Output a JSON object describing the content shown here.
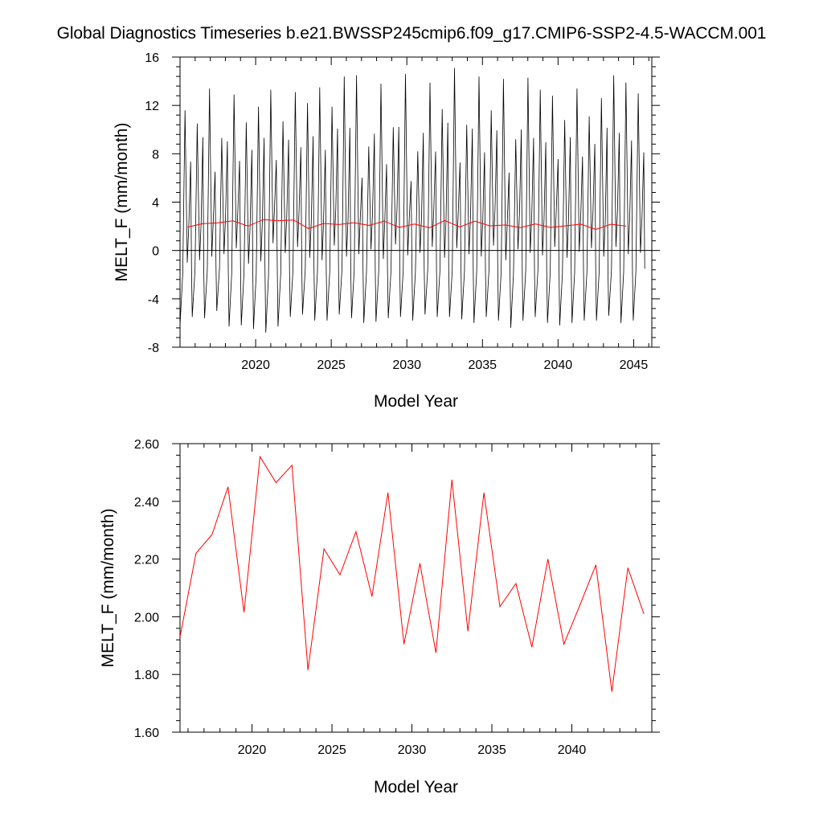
{
  "title": "Global Diagnostics Timeseries b.e21.BWSSP245cmip6.f09_g17.CMIP6-SSP2-4.5-WACCM.001",
  "colors": {
    "monthly": "#000000",
    "annual": "#ff0000",
    "axis": "#000000"
  },
  "chart_data": [
    {
      "type": "line",
      "xlabel": "Model Year",
      "ylabel": "MELT_F (mm/month)",
      "xlim": [
        2015,
        2046.2
      ],
      "ylim": [
        -8,
        16
      ],
      "xticks": [
        2020,
        2025,
        2030,
        2035,
        2040,
        2045
      ],
      "yticks": [
        -8,
        -4,
        0,
        4,
        8,
        12,
        16
      ],
      "ytick_labels": [
        "-8",
        "-4",
        "0",
        "4",
        "8",
        "12",
        "16"
      ],
      "reference_line_y": 0,
      "grid": false,
      "series": [
        {
          "role": "monthly",
          "monthly_peaks": [
            11.6,
            10.5,
            13.4,
            9.3,
            12.9,
            10.6,
            11.9,
            13.3,
            10.7,
            13.1,
            12.2,
            13.5,
            11.9,
            14.4,
            14.5,
            8.6,
            13.8,
            10.2,
            14.6,
            8.2,
            13.9,
            11.7,
            15.1,
            10.4,
            14.4,
            11.6,
            14.2,
            9.2,
            14.3,
            13.3,
            12.8,
            10.8,
            13.4,
            11.1,
            12.6,
            14.5,
            13.9,
            13.0
          ],
          "monthly_troughs": [
            -6.2,
            -5.5,
            -5.6,
            -5.0,
            -6.3,
            -6.2,
            -6.5,
            -6.8,
            -6.3,
            -5.5,
            -5.3,
            -5.8,
            -5.8,
            -5.3,
            -5.6,
            -6.0,
            -5.9,
            -5.6,
            -5.5,
            -5.8,
            -5.3,
            -5.5,
            -5.5,
            -5.7,
            -6.0,
            -5.5,
            -5.8,
            -6.4,
            -5.8,
            -5.5,
            -6.0,
            -6.2,
            -6.0,
            -5.8,
            -5.8,
            -5.4,
            -6.0,
            -5.8
          ],
          "monthly_secondary": [
            -1.0,
            -0.8,
            -0.5,
            -0.3,
            0.2,
            -1.1,
            -0.9,
            0.6,
            -0.2,
            0.3,
            -0.6,
            -0.8,
            0.4,
            -0.5,
            -0.3,
            0.1,
            -0.7,
            0.5,
            -0.4,
            -0.2,
            0.3,
            -0.6,
            0.2,
            -0.3,
            -0.5,
            0.4,
            -0.8,
            0.1,
            -0.2,
            -0.4,
            0.3,
            -0.6,
            -0.1,
            0.2,
            -0.5,
            0.3,
            -0.3,
            -0.2
          ]
        },
        {
          "role": "annual",
          "x": [
            2015.5,
            2016.5,
            2017.5,
            2018.5,
            2019.5,
            2020.5,
            2021.5,
            2022.5,
            2023.5,
            2024.5,
            2025.5,
            2026.5,
            2027.5,
            2028.5,
            2029.5,
            2030.5,
            2031.5,
            2032.5,
            2033.5,
            2034.5,
            2035.5,
            2036.5,
            2037.5,
            2038.5,
            2039.5,
            2040.5,
            2041.5,
            2042.5,
            2043.5,
            2044.5
          ],
          "values": [
            1.93,
            2.22,
            2.285,
            2.45,
            2.015,
            2.555,
            2.465,
            2.525,
            1.815,
            2.235,
            2.145,
            2.295,
            2.07,
            2.43,
            1.905,
            2.185,
            1.875,
            2.475,
            1.95,
            2.43,
            2.035,
            2.115,
            1.895,
            2.2,
            1.905,
            2.04,
            2.18,
            1.74,
            2.17,
            2.01
          ]
        }
      ]
    },
    {
      "type": "line",
      "xlabel": "Model Year",
      "ylabel": "MELT_F (mm/month)",
      "xlim": [
        2015.5,
        2045
      ],
      "ylim": [
        1.6,
        2.6
      ],
      "xticks": [
        2020,
        2025,
        2030,
        2035,
        2040
      ],
      "yticks": [
        1.6,
        1.8,
        2.0,
        2.2,
        2.4,
        2.6
      ],
      "ytick_labels": [
        "1.60",
        "1.80",
        "2.00",
        "2.20",
        "2.40",
        "2.60"
      ],
      "grid": false,
      "series": [
        {
          "role": "annual",
          "x": [
            2015.5,
            2016.5,
            2017.5,
            2018.5,
            2019.5,
            2020.5,
            2021.5,
            2022.5,
            2023.5,
            2024.5,
            2025.5,
            2026.5,
            2027.5,
            2028.5,
            2029.5,
            2030.5,
            2031.5,
            2032.5,
            2033.5,
            2034.5,
            2035.5,
            2036.5,
            2037.5,
            2038.5,
            2039.5,
            2040.5,
            2041.5,
            2042.5,
            2043.5,
            2044.5
          ],
          "values": [
            1.93,
            2.22,
            2.285,
            2.45,
            2.015,
            2.555,
            2.465,
            2.525,
            1.815,
            2.235,
            2.145,
            2.295,
            2.07,
            2.43,
            1.905,
            2.185,
            1.875,
            2.475,
            1.95,
            2.43,
            2.035,
            2.115,
            1.895,
            2.2,
            1.905,
            2.04,
            2.18,
            1.74,
            2.17,
            2.01
          ]
        }
      ]
    }
  ]
}
